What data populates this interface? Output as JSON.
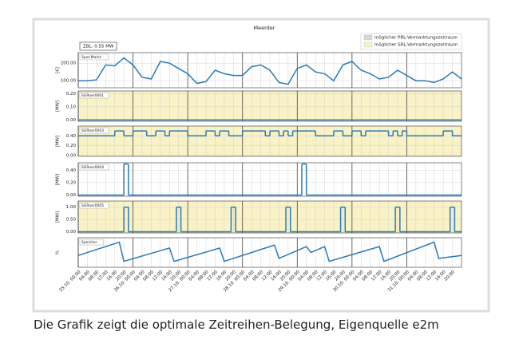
{
  "figure": {
    "title": "Meerder",
    "annotation": "ZBL: 0.55 MW",
    "legend": [
      {
        "name": "möglicher PRL-Vermarktungszeitraum",
        "color": "#d8d8d8"
      },
      {
        "name": "möglicher SRL-Vermarktungszeitraum",
        "color": "#f8f2c6"
      }
    ],
    "caption": "Die Grafik zeigt die optimale Zeitreihen-Belegung, Eigenquelle e2m"
  },
  "chart_data": [
    {
      "type": "line",
      "label": "Spot Markt",
      "ylabel": "[€]",
      "color": "#2a7ab8",
      "background": "#ffffff",
      "grid": true,
      "ylim": [
        60,
        260
      ],
      "yticks": [
        {
          "value": 100,
          "label": "100.00"
        },
        {
          "value": 200,
          "label": "200.00"
        }
      ],
      "x": [
        0,
        4,
        8,
        12,
        16,
        20,
        24,
        28,
        32,
        36,
        40,
        44,
        48,
        52,
        56,
        60,
        64,
        68,
        72,
        76,
        80,
        84,
        88,
        92,
        96,
        100,
        104,
        108,
        112,
        116,
        120,
        124,
        128,
        132,
        136,
        140,
        144,
        148,
        152,
        156,
        160,
        164,
        168
      ],
      "values": [
        100,
        100,
        105,
        190,
        185,
        230,
        190,
        120,
        110,
        210,
        200,
        170,
        140,
        85,
        95,
        160,
        140,
        130,
        130,
        180,
        190,
        160,
        90,
        80,
        170,
        190,
        150,
        140,
        100,
        190,
        210,
        160,
        140,
        110,
        120,
        160,
        130,
        100,
        100,
        90,
        110,
        150,
        110
      ]
    },
    {
      "type": "step",
      "label": "SGRoer0001",
      "ylabel": "[MW]",
      "color": "#2a7ab8",
      "background": "#f8f2c6",
      "grid": true,
      "ylim": [
        -0.01,
        0.22
      ],
      "yticks": [
        {
          "value": 0,
          "label": "0.00"
        },
        {
          "value": 0.1,
          "label": "0.10"
        },
        {
          "value": 0.2,
          "label": "0.20"
        }
      ],
      "x": [
        0,
        168
      ],
      "values": [
        0,
        0
      ]
    },
    {
      "type": "step",
      "label": "SGRoer0003",
      "ylabel": "[MW]",
      "color": "#2a7ab8",
      "background": "#f8f2c6",
      "grid": true,
      "ylim": [
        -0.02,
        0.6
      ],
      "yticks": [
        {
          "value": 0,
          "label": "0.00"
        },
        {
          "value": 0.2,
          "label": "0.20"
        },
        {
          "value": 0.4,
          "label": "0.40"
        }
      ],
      "x": [
        0,
        16,
        20,
        24,
        30,
        34,
        38,
        40,
        48,
        56,
        60,
        62,
        66,
        72,
        82,
        84,
        88,
        90,
        92,
        94,
        104,
        112,
        116,
        120,
        124,
        126,
        136,
        138,
        140,
        142,
        144,
        160,
        164,
        168
      ],
      "values": [
        0.4,
        0.5,
        0.4,
        0.5,
        0.4,
        0.5,
        0.4,
        0.5,
        0.4,
        0.5,
        0.4,
        0.5,
        0.4,
        0.5,
        0.4,
        0.5,
        0.4,
        0.5,
        0.4,
        0.5,
        0.4,
        0.5,
        0.4,
        0.5,
        0.4,
        0.5,
        0.4,
        0.5,
        0.4,
        0.5,
        0.4,
        0.5,
        0.4,
        0.4
      ]
    },
    {
      "type": "step",
      "label": "SGRoer0004",
      "ylabel": "[MW]",
      "color": "#2a7ab8",
      "background": "#ffffff",
      "grid": true,
      "ylim": [
        -0.02,
        0.52
      ],
      "yticks": [
        {
          "value": 0,
          "label": "0.00"
        },
        {
          "value": 0.2,
          "label": "0.20"
        },
        {
          "value": 0.4,
          "label": "0.40"
        }
      ],
      "x": [
        0,
        20,
        22,
        98,
        100,
        168
      ],
      "values": [
        0,
        0.5,
        0,
        0.5,
        0,
        0
      ]
    },
    {
      "type": "step",
      "label": "SGRoer0005",
      "ylabel": "[MW]",
      "color": "#2a7ab8",
      "background": "#f8f2c6",
      "grid": true,
      "ylim": [
        -0.05,
        1.25
      ],
      "yticks": [
        {
          "value": 0,
          "label": "0.00"
        },
        {
          "value": 0.5,
          "label": "0.50"
        },
        {
          "value": 1,
          "label": "1.00"
        }
      ],
      "x": [
        0,
        20,
        22,
        43,
        45,
        67,
        69,
        91,
        93,
        115,
        117,
        139,
        141,
        163,
        165,
        168
      ],
      "values": [
        0,
        1,
        0,
        1,
        0,
        1,
        0,
        1,
        0,
        1,
        0,
        1,
        0,
        1,
        0,
        0
      ]
    },
    {
      "type": "line",
      "label": "Speicher",
      "ylabel": "%",
      "color": "#2a7ab8",
      "background": "#ffffff",
      "grid": true,
      "ylim": [
        0,
        100
      ],
      "x": [
        0,
        18,
        20,
        40,
        42,
        62,
        64,
        86,
        88,
        100,
        102,
        108,
        110,
        132,
        134,
        156,
        158,
        168
      ],
      "values": [
        40,
        85,
        20,
        65,
        20,
        65,
        20,
        75,
        30,
        70,
        50,
        70,
        20,
        70,
        20,
        85,
        30,
        40
      ],
      "xlim": [
        0,
        168
      ],
      "xticks": [
        {
          "value": 0,
          "label": "25.10. 00:00"
        },
        {
          "value": 4,
          "label": "04:00"
        },
        {
          "value": 8,
          "label": "08:00"
        },
        {
          "value": 12,
          "label": "12:00"
        },
        {
          "value": 16,
          "label": "16:00"
        },
        {
          "value": 20,
          "label": "20:00"
        },
        {
          "value": 24,
          "label": "26.10. 00:00"
        },
        {
          "value": 28,
          "label": "04:00"
        },
        {
          "value": 32,
          "label": "08:00"
        },
        {
          "value": 36,
          "label": "12:00"
        },
        {
          "value": 40,
          "label": "16:00"
        },
        {
          "value": 44,
          "label": "20:00"
        },
        {
          "value": 48,
          "label": "27.10. 00:00"
        },
        {
          "value": 52,
          "label": "04:00"
        },
        {
          "value": 56,
          "label": "08:00"
        },
        {
          "value": 60,
          "label": "12:00"
        },
        {
          "value": 64,
          "label": "16:00"
        },
        {
          "value": 68,
          "label": "20:00"
        },
        {
          "value": 72,
          "label": "28.10. 00:00"
        },
        {
          "value": 76,
          "label": "04:00"
        },
        {
          "value": 80,
          "label": "08:00"
        },
        {
          "value": 84,
          "label": "12:00"
        },
        {
          "value": 88,
          "label": "16:00"
        },
        {
          "value": 92,
          "label": "20:00"
        },
        {
          "value": 96,
          "label": "29.10. 00:00"
        },
        {
          "value": 100,
          "label": "04:00"
        },
        {
          "value": 104,
          "label": "08:00"
        },
        {
          "value": 108,
          "label": "12:00"
        },
        {
          "value": 112,
          "label": "16:00"
        },
        {
          "value": 116,
          "label": "20:00"
        },
        {
          "value": 120,
          "label": "30.10. 00:00"
        },
        {
          "value": 124,
          "label": "04:00"
        },
        {
          "value": 128,
          "label": "08:00"
        },
        {
          "value": 132,
          "label": "12:00"
        },
        {
          "value": 136,
          "label": "16:00"
        },
        {
          "value": 140,
          "label": "20:00"
        },
        {
          "value": 144,
          "label": "31.10. 00:00"
        },
        {
          "value": 148,
          "label": "04:00"
        },
        {
          "value": 152,
          "label": "08:00"
        },
        {
          "value": 156,
          "label": "12:00"
        },
        {
          "value": 160,
          "label": "16:00"
        },
        {
          "value": 164,
          "label": "20:00"
        }
      ]
    }
  ]
}
